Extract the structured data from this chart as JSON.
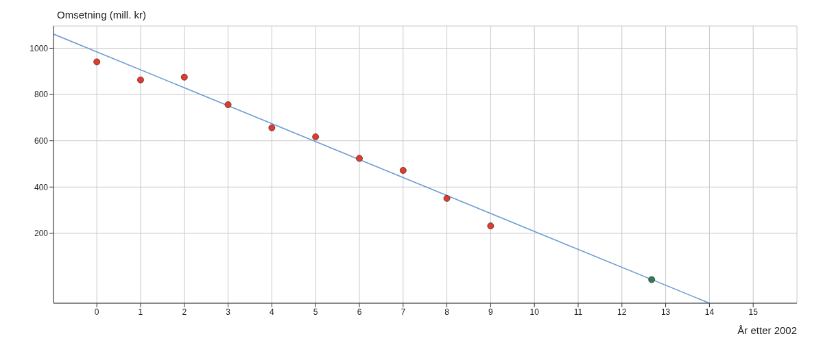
{
  "chart_data": {
    "type": "scatter",
    "xlabel": "År etter 2002",
    "ylabel": "Omsetning (mill. kr)",
    "xlim": [
      -0.99,
      16
    ],
    "ylim": [
      -102,
      1096
    ],
    "xticks": [
      0,
      1,
      2,
      3,
      4,
      5,
      6,
      7,
      8,
      9,
      10,
      11,
      12,
      13,
      14,
      15
    ],
    "yticks": [
      200,
      400,
      600,
      800,
      1000
    ],
    "grid": true,
    "marker": "circle",
    "series": [
      {
        "color": "#e8382a",
        "x": [
          0,
          1,
          2,
          3,
          4,
          5,
          6,
          7,
          8,
          9
        ],
        "values": [
          941,
          863,
          875,
          756,
          656,
          617,
          524,
          472,
          351,
          232
        ]
      },
      {
        "type": "line",
        "color": "#6b9bd1",
        "x": [
          -0.99,
          14
        ],
        "values": [
          1061,
          -102
        ],
        "marker": "none"
      },
      {
        "color": "#2e7d4f",
        "x": [
          12.68
        ],
        "values": [
          0
        ]
      }
    ]
  }
}
